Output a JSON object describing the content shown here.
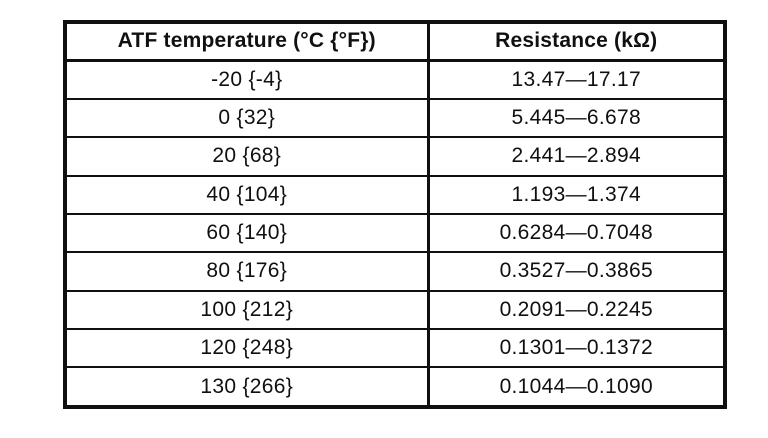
{
  "colors": {
    "ink": "#101010",
    "paper": "#ffffff"
  },
  "table": {
    "columns": [
      "ATF temperature (°C {°F})",
      "Resistance (kΩ)"
    ],
    "rows": [
      {
        "temperature": "-20 {-4}",
        "resistance": "13.47—17.17"
      },
      {
        "temperature": "0 {32}",
        "resistance": "5.445—6.678"
      },
      {
        "temperature": "20 {68}",
        "resistance": "2.441—2.894"
      },
      {
        "temperature": "40 {104}",
        "resistance": "1.193—1.374"
      },
      {
        "temperature": "60 {140}",
        "resistance": "0.6284—0.7048"
      },
      {
        "temperature": "80 {176}",
        "resistance": "0.3527—0.3865"
      },
      {
        "temperature": "100 {212}",
        "resistance": "0.2091—0.2245"
      },
      {
        "temperature": "120 {248}",
        "resistance": "0.1301—0.1372"
      },
      {
        "temperature": "130 {266}",
        "resistance": "0.1044—0.1090"
      }
    ]
  }
}
